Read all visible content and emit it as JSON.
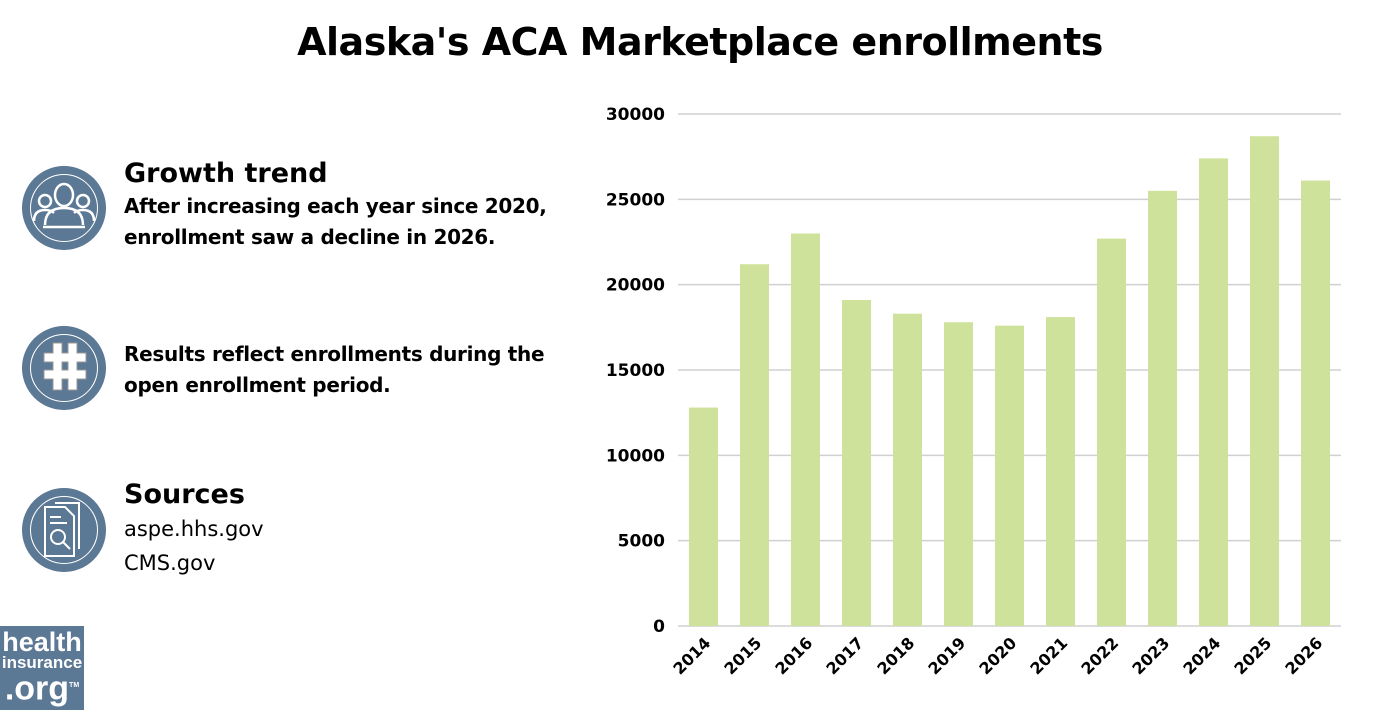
{
  "title": "Alaska's ACA Marketplace enrollments",
  "panels": {
    "growth": {
      "heading": "Growth trend",
      "line1": "After increasing each year since 2020,",
      "line2": "enrollment saw a decline in 2026.",
      "icon": "people-icon"
    },
    "note": {
      "line1": "Results reflect enrollments during the",
      "line2": "open enrollment period.",
      "icon": "hashtag-icon"
    },
    "sources": {
      "heading": "Sources",
      "items": [
        "aspe.hhs.gov",
        "CMS.gov"
      ],
      "icon": "document-search-icon"
    }
  },
  "logo": {
    "line1": "health",
    "line2": "insurance",
    "line3": ".org",
    "tm": "TM"
  },
  "colors": {
    "bar": "#cfe29c",
    "icon": "#5b7894",
    "grid": "#d0d0d0"
  },
  "chart_data": {
    "type": "bar",
    "title": "Alaska's ACA Marketplace enrollments",
    "xlabel": "",
    "ylabel": "",
    "categories": [
      "2014",
      "2015",
      "2016",
      "2017",
      "2018",
      "2019",
      "2020",
      "2021",
      "2022",
      "2023",
      "2024",
      "2025",
      "2026"
    ],
    "values": [
      12800,
      21200,
      23000,
      19100,
      18300,
      17800,
      17600,
      18100,
      22700,
      25500,
      27400,
      28700,
      26100
    ],
    "ylim": [
      0,
      30000
    ],
    "yticks": [
      "0",
      "5000",
      "10000",
      "15000",
      "20000",
      "25000",
      "30000"
    ],
    "grid": true,
    "legend": "none"
  }
}
